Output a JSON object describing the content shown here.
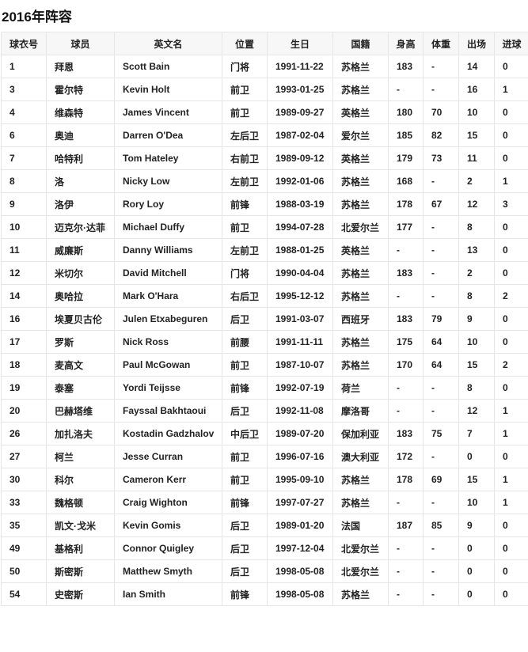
{
  "title": "2016年阵容",
  "columns": [
    "球衣号",
    "球员",
    "英文名",
    "位置",
    "生日",
    "国籍",
    "身高",
    "体重",
    "出场",
    "进球"
  ],
  "rows": [
    [
      "1",
      "拜恩",
      "Scott Bain",
      "门将",
      "1991-11-22",
      "苏格兰",
      "183",
      "-",
      "14",
      "0"
    ],
    [
      "3",
      "霍尔特",
      "Kevin Holt",
      "前卫",
      "1993-01-25",
      "苏格兰",
      "-",
      "-",
      "16",
      "1"
    ],
    [
      "4",
      "维森特",
      "James Vincent",
      "前卫",
      "1989-09-27",
      "英格兰",
      "180",
      "70",
      "10",
      "0"
    ],
    [
      "6",
      "奥迪",
      "Darren O'Dea",
      "左后卫",
      "1987-02-04",
      "爱尔兰",
      "185",
      "82",
      "15",
      "0"
    ],
    [
      "7",
      "哈特利",
      "Tom Hateley",
      "右前卫",
      "1989-09-12",
      "英格兰",
      "179",
      "73",
      "11",
      "0"
    ],
    [
      "8",
      "洛",
      "Nicky Low",
      "左前卫",
      "1992-01-06",
      "苏格兰",
      "168",
      "-",
      "2",
      "1"
    ],
    [
      "9",
      "洛伊",
      "Rory Loy",
      "前锋",
      "1988-03-19",
      "苏格兰",
      "178",
      "67",
      "12",
      "3"
    ],
    [
      "10",
      "迈克尔·达菲",
      "Michael Duffy",
      "前卫",
      "1994-07-28",
      "北爱尔兰",
      "177",
      "-",
      "8",
      "0"
    ],
    [
      "11",
      "威廉斯",
      "Danny Williams",
      "左前卫",
      "1988-01-25",
      "英格兰",
      "-",
      "-",
      "13",
      "0"
    ],
    [
      "12",
      "米切尔",
      "David Mitchell",
      "门将",
      "1990-04-04",
      "苏格兰",
      "183",
      "-",
      "2",
      "0"
    ],
    [
      "14",
      "奥哈拉",
      "Mark O'Hara",
      "右后卫",
      "1995-12-12",
      "苏格兰",
      "-",
      "-",
      "8",
      "2"
    ],
    [
      "16",
      "埃夏贝古伦",
      "Julen Etxabeguren",
      "后卫",
      "1991-03-07",
      "西班牙",
      "183",
      "79",
      "9",
      "0"
    ],
    [
      "17",
      "罗斯",
      "Nick Ross",
      "前腰",
      "1991-11-11",
      "苏格兰",
      "175",
      "64",
      "10",
      "0"
    ],
    [
      "18",
      "麦高文",
      "Paul McGowan",
      "前卫",
      "1987-10-07",
      "苏格兰",
      "170",
      "64",
      "15",
      "2"
    ],
    [
      "19",
      "泰塞",
      "Yordi Teijsse",
      "前锋",
      "1992-07-19",
      "荷兰",
      "-",
      "-",
      "8",
      "0"
    ],
    [
      "20",
      "巴赫塔维",
      "Fayssal Bakhtaoui",
      "后卫",
      "1992-11-08",
      "摩洛哥",
      "-",
      "-",
      "12",
      "1"
    ],
    [
      "26",
      "加扎洛夫",
      "Kostadin Gadzhalov",
      "中后卫",
      "1989-07-20",
      "保加利亚",
      "183",
      "75",
      "7",
      "1"
    ],
    [
      "27",
      "柯兰",
      "Jesse Curran",
      "前卫",
      "1996-07-16",
      "澳大利亚",
      "172",
      "-",
      "0",
      "0"
    ],
    [
      "30",
      "科尔",
      "Cameron Kerr",
      "前卫",
      "1995-09-10",
      "苏格兰",
      "178",
      "69",
      "15",
      "1"
    ],
    [
      "33",
      "魏格顿",
      "Craig Wighton",
      "前锋",
      "1997-07-27",
      "苏格兰",
      "-",
      "-",
      "10",
      "1"
    ],
    [
      "35",
      "凯文·戈米",
      "Kevin Gomis",
      "后卫",
      "1989-01-20",
      "法国",
      "187",
      "85",
      "9",
      "0"
    ],
    [
      "49",
      "基格利",
      "Connor Quigley",
      "后卫",
      "1997-12-04",
      "北爱尔兰",
      "-",
      "-",
      "0",
      "0"
    ],
    [
      "50",
      "斯密斯",
      "Matthew Smyth",
      "后卫",
      "1998-05-08",
      "北爱尔兰",
      "-",
      "-",
      "0",
      "0"
    ],
    [
      "54",
      "史密斯",
      "Ian Smith",
      "前锋",
      "1998-05-08",
      "苏格兰",
      "-",
      "-",
      "0",
      "0"
    ]
  ]
}
